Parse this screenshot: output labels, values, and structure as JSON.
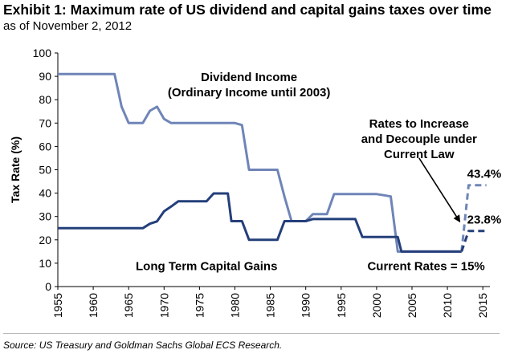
{
  "header": {
    "title": "Exhibit 1: Maximum rate of US dividend and capital gains taxes over time",
    "subtitle": "as of November 2, 2012"
  },
  "footer": {
    "source": "Source: US Treasury and Goldman Sachs Global ECS Research."
  },
  "chart_data": {
    "type": "line",
    "title": "Maximum rate of US dividend and capital gains taxes over time",
    "xlabel": "",
    "ylabel": "Tax Rate (%)",
    "xlim": [
      1955,
      2016
    ],
    "ylim": [
      0,
      100
    ],
    "x_ticks": [
      1955,
      1960,
      1965,
      1970,
      1975,
      1980,
      1985,
      1990,
      1995,
      2000,
      2005,
      2010,
      2015
    ],
    "y_ticks": [
      0,
      10,
      20,
      30,
      40,
      50,
      60,
      70,
      80,
      90,
      100
    ],
    "grid": false,
    "colors": {
      "dividend": "#6f85b8",
      "capital_gains": "#243f7a"
    },
    "series": [
      {
        "name": "Dividend Income (Ordinary Income until 2003)",
        "color": "#6f85b8",
        "points": [
          [
            1955,
            91
          ],
          [
            1963,
            91
          ],
          [
            1964,
            77
          ],
          [
            1965,
            70
          ],
          [
            1967,
            70
          ],
          [
            1968,
            75.25
          ],
          [
            1969,
            77
          ],
          [
            1970,
            71.75
          ],
          [
            1971,
            70
          ],
          [
            1980,
            70
          ],
          [
            1981,
            69.125
          ],
          [
            1982,
            50
          ],
          [
            1986,
            50
          ],
          [
            1987,
            38.5
          ],
          [
            1988,
            28
          ],
          [
            1990,
            28
          ],
          [
            1991,
            31
          ],
          [
            1993,
            31
          ],
          [
            1994,
            39.6
          ],
          [
            2000,
            39.6
          ],
          [
            2001,
            39.1
          ],
          [
            2002,
            38.6
          ],
          [
            2003,
            15
          ],
          [
            2012,
            15
          ]
        ]
      },
      {
        "name": "Long Term Capital Gains",
        "color": "#243f7a",
        "points": [
          [
            1955,
            25
          ],
          [
            1967,
            25
          ],
          [
            1968,
            26.9
          ],
          [
            1969,
            27.9
          ],
          [
            1970,
            32.2
          ],
          [
            1971,
            34.25
          ],
          [
            1972,
            36.5
          ],
          [
            1976,
            36.5
          ],
          [
            1977,
            39.875
          ],
          [
            1979,
            39.875
          ],
          [
            1979.5,
            28
          ],
          [
            1980,
            28
          ],
          [
            1981,
            28
          ],
          [
            1982,
            20
          ],
          [
            1986,
            20
          ],
          [
            1987,
            28
          ],
          [
            1990,
            28
          ],
          [
            1991,
            28.9
          ],
          [
            1997,
            28.9
          ],
          [
            1998,
            21.2
          ],
          [
            2003,
            21.2
          ],
          [
            2003.5,
            15
          ],
          [
            2012,
            15
          ]
        ]
      },
      {
        "name": "Dividend Income (projected)",
        "color": "#6f85b8",
        "dashed": true,
        "points": [
          [
            2012,
            15
          ],
          [
            2013,
            43.4
          ],
          [
            2015.5,
            43.4
          ]
        ]
      },
      {
        "name": "Long Term Capital Gains (projected)",
        "color": "#243f7a",
        "dashed": true,
        "points": [
          [
            2012,
            15
          ],
          [
            2013,
            23.8
          ],
          [
            2015.5,
            23.8
          ]
        ]
      }
    ],
    "annotations": [
      {
        "lines": [
          "Dividend Income",
          "(Ordinary Income until 2003)"
        ],
        "x": 1982,
        "y": 88
      },
      {
        "lines": [
          "Long Term Capital Gains"
        ],
        "x": 1976,
        "y": 7
      },
      {
        "lines": [
          "Rates to Increase",
          "and Decouple under",
          "Current Law"
        ],
        "x": 2006,
        "y": 68
      },
      {
        "lines": [
          "Current Rates = 15%"
        ],
        "x": 2007,
        "y": 7
      },
      {
        "lines": [
          "43.4%"
        ],
        "x": 2015.2,
        "y": 46.5
      },
      {
        "lines": [
          "23.8%"
        ],
        "x": 2015.2,
        "y": 26.9
      }
    ],
    "arrow": {
      "from": [
        2006,
        55
      ],
      "to": [
        2011.7,
        28
      ]
    }
  }
}
